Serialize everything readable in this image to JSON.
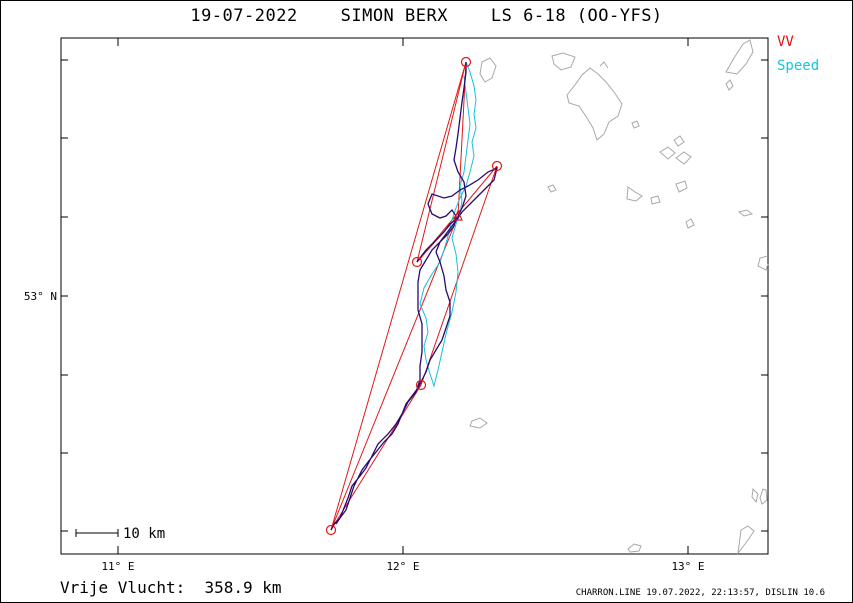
{
  "title": "19-07-2022    SIMON BERX    LS 6-18 (OO-YFS)",
  "legend": {
    "vv": "VV",
    "speed": "Speed"
  },
  "axes": {
    "lon_labels": [
      "11° E",
      "12° E",
      "13° E"
    ],
    "lat_labels": [
      "53° N"
    ]
  },
  "scale_label": "10 km",
  "distance_label": "Vrije Vlucht:  358.9 km",
  "footer": "CHARRON.LINE 19.07.2022, 22:13:57, DISLIN 10.6",
  "colors": {
    "track": "#2a0a6e",
    "speed": "#18c0d8",
    "vv": "#e01818",
    "coast": "#a0a0a0"
  }
}
